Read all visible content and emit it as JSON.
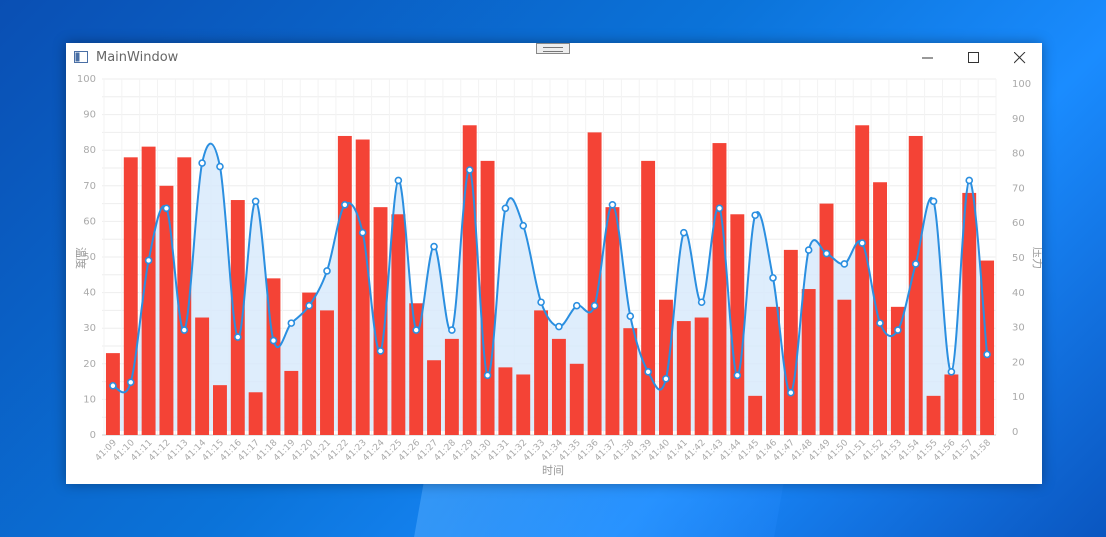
{
  "window": {
    "title": "MainWindow"
  },
  "icons": {
    "app": "window-icon",
    "minimize": "minimize-icon",
    "maximize": "maximize-icon",
    "close": "close-icon"
  },
  "colors": {
    "bar": "#f44336",
    "line": "#2b8fe0",
    "area": "#d6e9fb"
  },
  "chart_data": {
    "type": "bar+line",
    "categories": [
      "41:09",
      "41:10",
      "41:11",
      "41:12",
      "41:13",
      "41:14",
      "41:15",
      "41:16",
      "41:17",
      "41:18",
      "41:19",
      "41:20",
      "41:21",
      "41:22",
      "41:23",
      "41:24",
      "41:25",
      "41:26",
      "41:27",
      "41:28",
      "41:29",
      "41:30",
      "41:31",
      "41:32",
      "41:33",
      "41:34",
      "41:35",
      "41:36",
      "41:37",
      "41:38",
      "41:39",
      "41:40",
      "41:41",
      "41:42",
      "41:43",
      "41:44",
      "41:45",
      "41:46",
      "41:47",
      "41:48",
      "41:49",
      "41:50",
      "41:51",
      "41:52",
      "41:53",
      "41:54",
      "41:55",
      "41:56",
      "41:57",
      "41:58"
    ],
    "xlabel": "时间",
    "ylabel_left": "温度",
    "ylabel_right": "压力",
    "ylim_left": [
      0,
      100
    ],
    "ylim_right": [
      0,
      100
    ],
    "yticks_left": [
      "0",
      "10",
      "20",
      "30",
      "40",
      "50",
      "60",
      "70",
      "80",
      "90",
      "100"
    ],
    "yticks_right": [
      "0",
      "10",
      "20",
      "30",
      "40",
      "50",
      "60",
      "70",
      "80",
      "90",
      "100"
    ],
    "grid": true,
    "series": [
      {
        "type": "bar",
        "axis": "left",
        "values": [
          23,
          78,
          81,
          70,
          78,
          33,
          14,
          66,
          12,
          44,
          18,
          40,
          35,
          84,
          83,
          64,
          62,
          37,
          21,
          27,
          87,
          77,
          19,
          17,
          35,
          27,
          20,
          85,
          64,
          30,
          77,
          38,
          32,
          33,
          82,
          62,
          11,
          36,
          52,
          41,
          65,
          38,
          87,
          71,
          36,
          84,
          11,
          17,
          68,
          49
        ]
      },
      {
        "type": "line",
        "axis": "right",
        "smooth": true,
        "area": true,
        "values": [
          13,
          14,
          49,
          64,
          29,
          77,
          76,
          27,
          66,
          26,
          31,
          36,
          46,
          65,
          57,
          23,
          72,
          29,
          53,
          29,
          75,
          16,
          64,
          59,
          37,
          30,
          36,
          36,
          65,
          33,
          17,
          15,
          57,
          37,
          64,
          16,
          62,
          44,
          11,
          52,
          51,
          48,
          54,
          31,
          29,
          48,
          66,
          17,
          72,
          22
        ]
      }
    ]
  }
}
